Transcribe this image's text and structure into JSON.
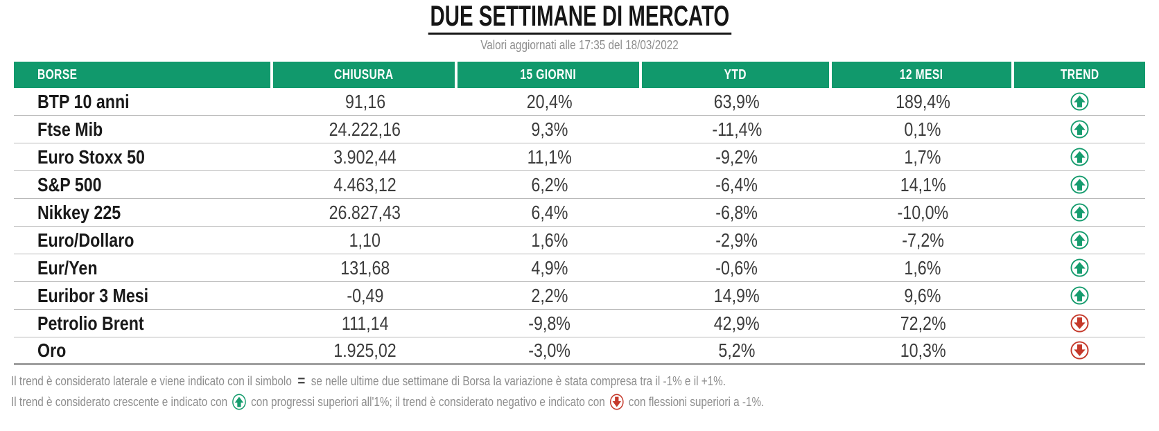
{
  "header": {
    "title": "DUE SETTIMANE DI MERCATO",
    "subtitle": "Valori aggiornati alle 17:35 del 18/03/2022"
  },
  "chart_data": {
    "type": "table",
    "title": "DUE SETTIMANE DI MERCATO",
    "subtitle": "Valori aggiornati alle 17:35 del 18/03/2022",
    "columns": [
      "BORSE",
      "CHIUSURA",
      "15 GIORNI",
      "YTD",
      "12 MESI",
      "TREND"
    ],
    "rows": [
      {
        "borse": "BTP 10 anni",
        "chiusura": "91,16",
        "giorni15": "20,4%",
        "ytd": "63,9%",
        "mesi12": "189,4%",
        "trend": "up"
      },
      {
        "borse": "Ftse Mib",
        "chiusura": "24.222,16",
        "giorni15": "9,3%",
        "ytd": "-11,4%",
        "mesi12": "0,1%",
        "trend": "up"
      },
      {
        "borse": "Euro Stoxx 50",
        "chiusura": "3.902,44",
        "giorni15": "11,1%",
        "ytd": "-9,2%",
        "mesi12": "1,7%",
        "trend": "up"
      },
      {
        "borse": "S&P 500",
        "chiusura": "4.463,12",
        "giorni15": "6,2%",
        "ytd": "-6,4%",
        "mesi12": "14,1%",
        "trend": "up"
      },
      {
        "borse": "Nikkey 225",
        "chiusura": "26.827,43",
        "giorni15": "6,4%",
        "ytd": "-6,8%",
        "mesi12": "-10,0%",
        "trend": "up"
      },
      {
        "borse": "Euro/Dollaro",
        "chiusura": "1,10",
        "giorni15": "1,6%",
        "ytd": "-2,9%",
        "mesi12": "-7,2%",
        "trend": "up"
      },
      {
        "borse": "Eur/Yen",
        "chiusura": "131,68",
        "giorni15": "4,9%",
        "ytd": "-0,6%",
        "mesi12": "1,6%",
        "trend": "up"
      },
      {
        "borse": "Euribor 3 Mesi",
        "chiusura": "-0,49",
        "giorni15": "2,2%",
        "ytd": "14,9%",
        "mesi12": "9,6%",
        "trend": "up"
      },
      {
        "borse": "Petrolio Brent",
        "chiusura": "111,14",
        "giorni15": "-9,8%",
        "ytd": "42,9%",
        "mesi12": "72,2%",
        "trend": "down"
      },
      {
        "borse": "Oro",
        "chiusura": "1.925,02",
        "giorni15": "-3,0%",
        "ytd": "5,2%",
        "mesi12": "10,3%",
        "trend": "down"
      }
    ]
  },
  "footer": {
    "note1_pre": "Il trend è considerato laterale e viene indicato con il simbolo",
    "note1_symbol": "=",
    "note1_post": "se nelle ultime due settimane di Borsa la variazione è stata compresa tra il -1% e il +1%.",
    "note2_pre": "Il trend è considerato crescente e indicato con",
    "note2_mid": "con progressi superiori all'1%; il trend è considerato negativo e indicato con",
    "note2_post": "con flessioni superiori a -1%."
  },
  "colors": {
    "header_green": "#11996c",
    "trend_up_green": "#169c6e",
    "trend_down_red": "#c5392b",
    "title_black": "#161616",
    "subtitle_gray": "#8d8d8d",
    "row_separator": "#b9b9b9"
  },
  "icons": {
    "trend_up": "circled-up-arrow",
    "trend_down": "circled-down-arrow",
    "lateral": "equals-sign"
  }
}
